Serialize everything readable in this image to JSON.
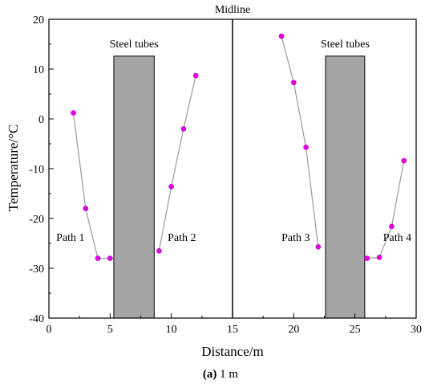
{
  "chart_data": {
    "type": "scatter",
    "xlabel": "Distance/m",
    "ylabel": "Temperature/°C",
    "xlim": [
      0,
      30
    ],
    "ylim": [
      -40,
      20
    ],
    "xticks": [
      0,
      5,
      10,
      15,
      20,
      25,
      30
    ],
    "yticks": [
      -40,
      -30,
      -20,
      -10,
      0,
      10,
      20
    ],
    "grid": false,
    "marker_color": "#e600e6",
    "line_color": "#9a9a9a",
    "series": [
      {
        "label": "Path 1",
        "x": [
          2,
          3,
          4,
          5
        ],
        "y": [
          1.2,
          -18,
          -28,
          -28
        ]
      },
      {
        "label": "Path 2",
        "x": [
          9,
          10,
          11,
          12
        ],
        "y": [
          -26.5,
          -13.6,
          -2,
          8.7
        ]
      },
      {
        "label": "Path 3",
        "x": [
          19,
          20,
          21,
          22
        ],
        "y": [
          16.6,
          7.3,
          -5.7,
          -25.7
        ]
      },
      {
        "label": "Path 4",
        "x": [
          26,
          27,
          28,
          29
        ],
        "y": [
          -28,
          -27.8,
          -21.6,
          -8.4
        ]
      }
    ],
    "rectangles": [
      {
        "label": "Steel tubes",
        "x0": 5.3,
        "x1": 8.6,
        "y0": -40,
        "y1": 12.6,
        "fill": "#a5a5a5"
      },
      {
        "label": "Steel tubes",
        "x0": 22.6,
        "x1": 25.8,
        "y0": -40,
        "y1": 12.6,
        "fill": "#a5a5a5"
      }
    ],
    "midline": {
      "label": "Midline",
      "x": 15
    }
  },
  "caption": {
    "prefix": "(a)",
    "text": " 1 m"
  }
}
